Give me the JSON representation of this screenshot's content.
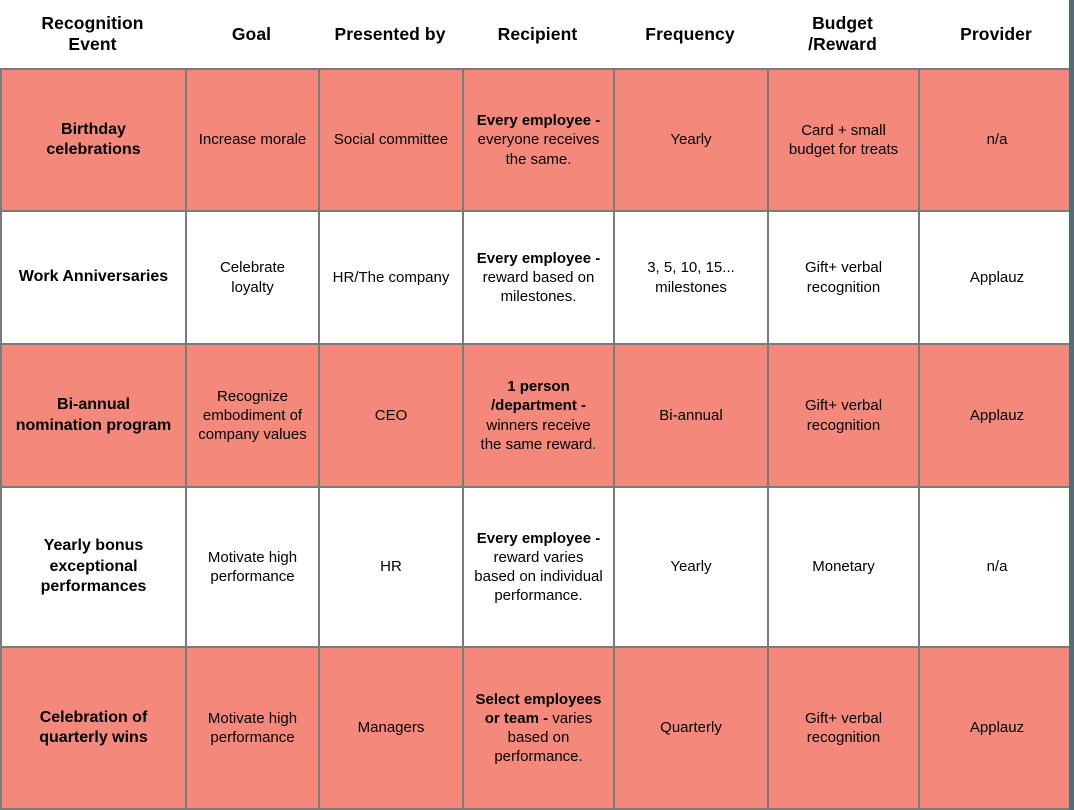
{
  "colors": {
    "row_highlight": "#f4897b",
    "grid_border": "#7b7b7b",
    "edge_border": "#566b74"
  },
  "table": {
    "columns": [
      {
        "label": "Recognition\nEvent"
      },
      {
        "label": "Goal"
      },
      {
        "label": "Presented by"
      },
      {
        "label": "Recipient"
      },
      {
        "label": "Frequency"
      },
      {
        "label": "Budget\n/Reward"
      },
      {
        "label": "Provider"
      }
    ],
    "rows": [
      {
        "event": "Birthday celebrations",
        "goal": "Increase morale",
        "presented_by": "Social committee",
        "recipient_bold": "Every employee -",
        "recipient_rest": "everyone receives the same.",
        "frequency": "Yearly",
        "budget_reward": "Card + small budget for treats",
        "provider": "n/a"
      },
      {
        "event": "Work Anniversaries",
        "goal": "Celebrate loyalty",
        "presented_by": "HR/The company",
        "recipient_bold": "Every employee -",
        "recipient_rest": "reward based on milestones.",
        "frequency": "3, 5, 10, 15... milestones",
        "budget_reward": "Gift+ verbal recognition",
        "provider": "Applauz"
      },
      {
        "event": "Bi-annual nomination program",
        "goal": "Recognize embodiment of company values",
        "presented_by": "CEO",
        "recipient_bold": "1 person /department -",
        "recipient_rest": "winners receive the same reward.",
        "frequency": "Bi-annual",
        "budget_reward": "Gift+ verbal recognition",
        "provider": "Applauz"
      },
      {
        "event": "Yearly bonus exceptional performances",
        "goal": "Motivate high performance",
        "presented_by": "HR",
        "recipient_bold": "Every employee -",
        "recipient_rest": "reward varies based on individual performance.",
        "frequency": "Yearly",
        "budget_reward": "Monetary",
        "provider": "n/a"
      },
      {
        "event": "Celebration of quarterly wins",
        "goal": "Motivate high performance",
        "presented_by": "Managers",
        "recipient_bold": "Select employees or team -",
        "recipient_rest": "varies based on performance.",
        "frequency": "Quarterly",
        "budget_reward": "Gift+ verbal recognition",
        "provider": "Applauz"
      }
    ]
  }
}
